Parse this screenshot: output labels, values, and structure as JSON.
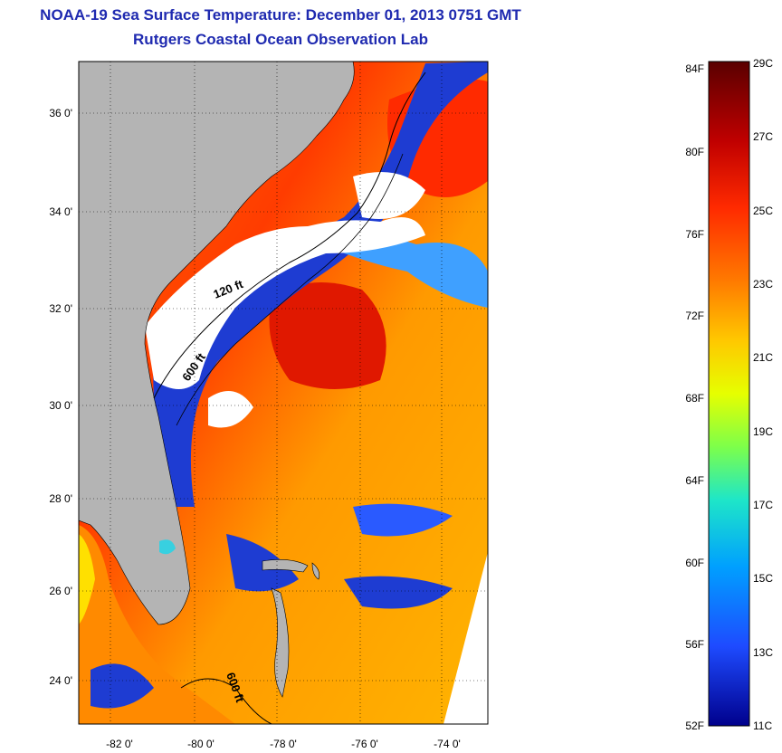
{
  "title": "NOAA-19 Sea Surface Temperature:  December 01, 2013 0751 GMT",
  "subtitle": "Rutgers Coastal Ocean Observation Lab",
  "map": {
    "lat_ticks": [
      "36 0'",
      "34 0'",
      "32 0'",
      "30 0'",
      "28 0'",
      "26 0'",
      "24 0'"
    ],
    "lon_ticks": [
      "-82 0'",
      "-80 0'",
      "-78 0'",
      "-76 0'",
      "-74 0'"
    ],
    "contour_labels": [
      "120 ft",
      "600 ft",
      "600 ft"
    ],
    "land_color": "#b4b4b4",
    "cloud_color": "#ffffff"
  },
  "colorbar": {
    "fahrenheit_labels": [
      "84F",
      "80F",
      "76F",
      "72F",
      "68F",
      "64F",
      "60F",
      "56F",
      "52F"
    ],
    "celsius_labels": [
      "29C",
      "27C",
      "25C",
      "23C",
      "21C",
      "19C",
      "17C",
      "15C",
      "13C",
      "11C"
    ],
    "colors": [
      "#5a0000",
      "#c00000",
      "#ff2a00",
      "#ff7a00",
      "#ffc800",
      "#e6ff00",
      "#7dff4a",
      "#1ee6c8",
      "#00a0ff",
      "#1e4bff",
      "#00008c"
    ]
  }
}
